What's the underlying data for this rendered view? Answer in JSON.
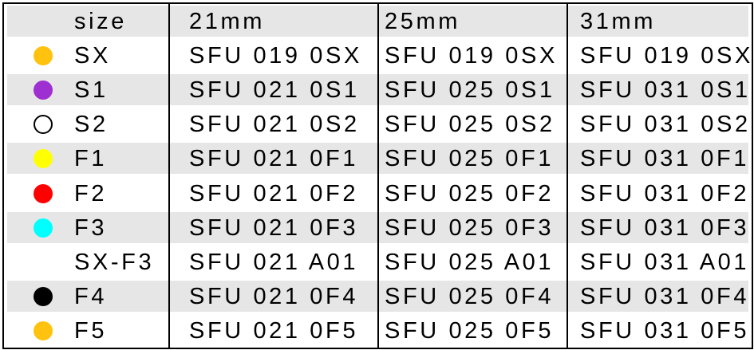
{
  "header": {
    "size_label": "size",
    "columns": [
      "21mm",
      "25mm",
      "31mm"
    ]
  },
  "rows": [
    {
      "size": "SX",
      "dot_color": "#FFC20E",
      "codes": [
        "SFU 019 0SX",
        "SFU 019 0SX",
        "SFU 019 0SX"
      ]
    },
    {
      "size": "S1",
      "dot_color": "#9E2FD0",
      "codes": [
        "SFU 021 0S1",
        "SFU 025 0S1",
        "SFU 031 0S1"
      ]
    },
    {
      "size": "S2",
      "dot_color": "#FFFFFF",
      "dot_outline": true,
      "codes": [
        "SFU 021 0S2",
        "SFU 025 0S2",
        "SFU 031 0S2"
      ]
    },
    {
      "size": "F1",
      "dot_color": "#FFFF00",
      "codes": [
        "SFU 021 0F1",
        "SFU 025 0F1",
        "SFU 031 0F1"
      ]
    },
    {
      "size": "F2",
      "dot_color": "#FF0000",
      "codes": [
        "SFU 021 0F2",
        "SFU 025 0F2",
        "SFU 031 0F2"
      ]
    },
    {
      "size": "F3",
      "dot_color": "#00FFFF",
      "codes": [
        "SFU 021 0F3",
        "SFU 025 0F3",
        "SFU 031 0F3"
      ]
    },
    {
      "size": "SX-F3",
      "dot_color": null,
      "codes": [
        "SFU 021 A01",
        "SFU 025 A01",
        "SFU 031 A01"
      ]
    },
    {
      "size": "F4",
      "dot_color": "#000000",
      "codes": [
        "SFU 021 0F4",
        "SFU 025 0F4",
        "SFU 031 0F4"
      ]
    },
    {
      "size": "F5",
      "dot_color": "#FFC20E",
      "codes": [
        "SFU 021 0F5",
        "SFU 025 0F5",
        "SFU 031 0F5"
      ]
    }
  ],
  "colors": {
    "stripe": "#E6E6E6",
    "border": "#000000"
  }
}
